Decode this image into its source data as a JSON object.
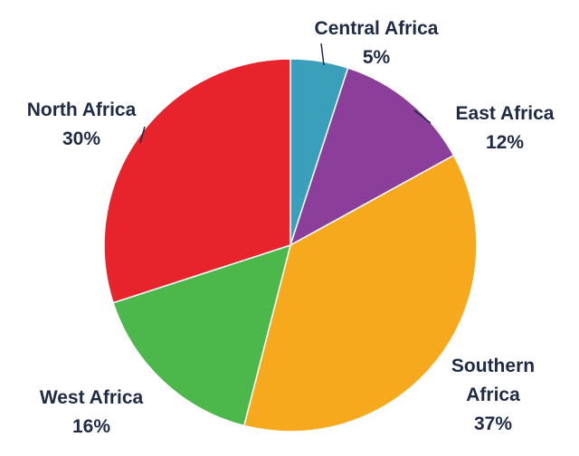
{
  "chart_data": {
    "type": "pie",
    "categories": [
      "Central Africa",
      "East Africa",
      "Southern Africa",
      "West Africa",
      "North Africa"
    ],
    "values": [
      5,
      12,
      37,
      16,
      30
    ],
    "value_labels": [
      "5%",
      "12%",
      "37%",
      "16%",
      "30%"
    ],
    "colors": [
      "#3a9fbb",
      "#8b3f9b",
      "#f7a91d",
      "#4cb84b",
      "#e7232b"
    ]
  }
}
